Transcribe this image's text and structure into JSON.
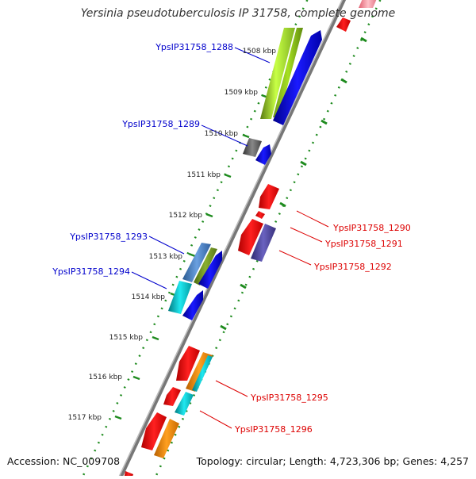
{
  "map": {
    "title": "Yersinia pseudotuberculosis IP 31758, complete genome",
    "accession": "Accession: NC_009708",
    "summary": "Topology: circular; Length: 4,723,306 bp; Genes: 4,257",
    "scale_labels": [
      "1508 kbp",
      "1509 kbp",
      "1510 kbp",
      "1511 kbp",
      "1512 kbp",
      "1513 kbp",
      "1514 kbp",
      "1515 kbp",
      "1516 kbp",
      "1517 kbp"
    ],
    "colors": {
      "forward_label": "#0000cc",
      "reverse_label": "#dd0000",
      "backbone": "#888888",
      "tick": "#228b22"
    }
  },
  "gene_labels": [
    {
      "name": "YpsIP31758_1288",
      "strand": "forward"
    },
    {
      "name": "YpsIP31758_1289",
      "strand": "forward"
    },
    {
      "name": "YpsIP31758_1293",
      "strand": "forward"
    },
    {
      "name": "YpsIP31758_1294",
      "strand": "forward"
    },
    {
      "name": "YpsIP31758_1290",
      "strand": "reverse"
    },
    {
      "name": "YpsIP31758_1291",
      "strand": "reverse"
    },
    {
      "name": "YpsIP31758_1292",
      "strand": "reverse"
    },
    {
      "name": "YpsIP31758_1295",
      "strand": "reverse"
    },
    {
      "name": "YpsIP31758_1296",
      "strand": "reverse"
    }
  ]
}
